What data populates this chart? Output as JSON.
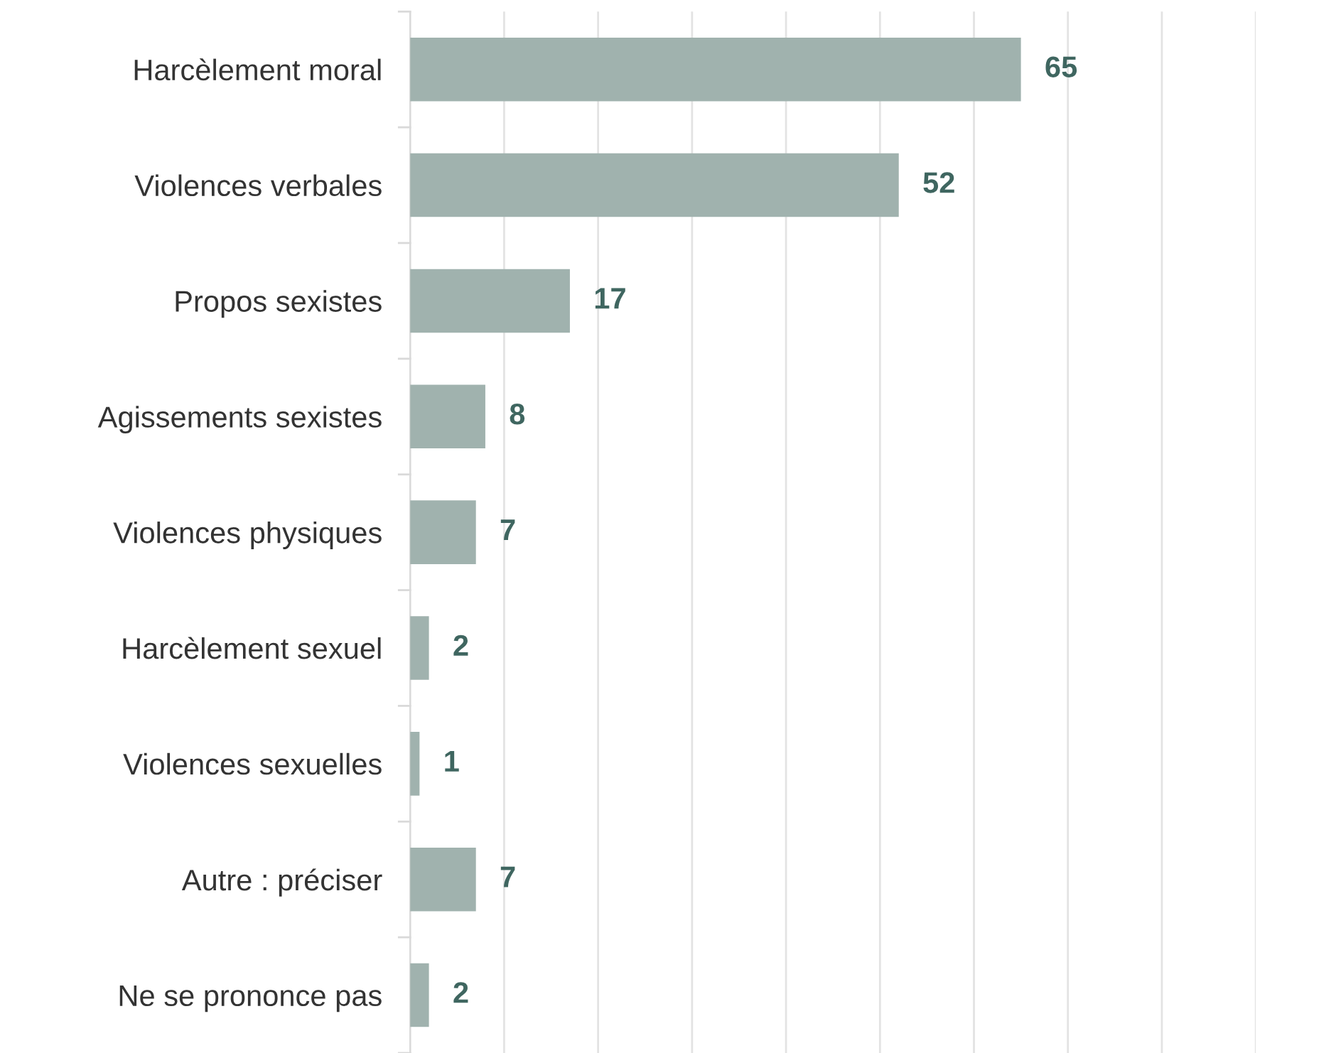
{
  "chart_data": {
    "type": "bar",
    "orientation": "horizontal",
    "categories": [
      "Harcèlement moral",
      "Violences verbales",
      "Propos sexistes",
      "Agissements sexistes",
      "Violences physiques",
      "Harcèlement sexuel",
      "Violences sexuelles",
      "Autre : préciser",
      "Ne se prononce pas"
    ],
    "values": [
      65,
      52,
      17,
      8,
      7,
      2,
      1,
      7,
      2
    ],
    "color": "#a0b2ae",
    "data_labels": true,
    "xlim": [
      0,
      90
    ],
    "xticks": [
      {
        "value": 0,
        "label": null
      },
      {
        "value": 10,
        "label": null
      },
      {
        "value": 20,
        "label": null
      },
      {
        "value": 30,
        "label": null
      },
      {
        "value": 40,
        "label": null
      },
      {
        "value": 50,
        "label": null
      },
      {
        "value": 60,
        "label": null
      },
      {
        "value": 70,
        "label": null
      },
      {
        "value": 80,
        "label": null
      },
      {
        "value": 90,
        "label": null
      }
    ],
    "grid": "x",
    "tick_labels": "y"
  }
}
